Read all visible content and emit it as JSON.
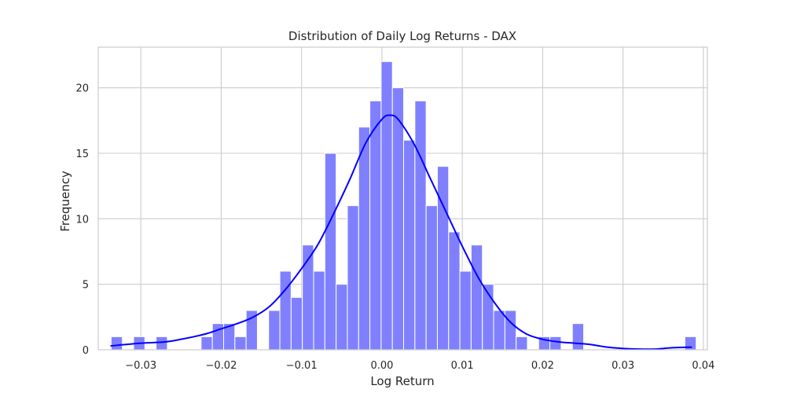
{
  "chart_data": {
    "type": "bar",
    "title": "Distribution of Daily Log Returns - DAX",
    "xlabel": "Log Return",
    "ylabel": "Frequency",
    "xlim": [
      -0.0353,
      0.0405
    ],
    "ylim": [
      0,
      23.1
    ],
    "x_ticks": [
      -0.03,
      -0.02,
      -0.01,
      0.0,
      0.01,
      0.02,
      0.03,
      0.04
    ],
    "x_tick_labels": [
      "−0.03",
      "−0.02",
      "−0.01",
      "0.00",
      "0.01",
      "0.02",
      "0.03",
      "0.04"
    ],
    "y_ticks": [
      0,
      5,
      10,
      15,
      20
    ],
    "y_tick_labels": [
      "0",
      "5",
      "10",
      "15",
      "20"
    ],
    "grid": true,
    "bar_color": "#8080ff",
    "bar_edge_color": "#ffffff",
    "kde_color": "#0000ff",
    "axis_edge_color": "#cccccc",
    "bins": [
      {
        "x0": -0.0337,
        "x1": -0.0323,
        "count": 1
      },
      {
        "x0": -0.0323,
        "x1": -0.0309,
        "count": 0
      },
      {
        "x0": -0.0309,
        "x1": -0.0295,
        "count": 1
      },
      {
        "x0": -0.0295,
        "x1": -0.0281,
        "count": 0
      },
      {
        "x0": -0.0281,
        "x1": -0.0267,
        "count": 1
      },
      {
        "x0": -0.0267,
        "x1": -0.0253,
        "count": 0
      },
      {
        "x0": -0.0253,
        "x1": -0.0239,
        "count": 0
      },
      {
        "x0": -0.0239,
        "x1": -0.0225,
        "count": 0
      },
      {
        "x0": -0.0225,
        "x1": -0.0211,
        "count": 1
      },
      {
        "x0": -0.0211,
        "x1": -0.0197,
        "count": 2
      },
      {
        "x0": -0.0197,
        "x1": -0.0183,
        "count": 2
      },
      {
        "x0": -0.0183,
        "x1": -0.0169,
        "count": 1
      },
      {
        "x0": -0.0169,
        "x1": -0.0155,
        "count": 3
      },
      {
        "x0": -0.0155,
        "x1": -0.0141,
        "count": 0
      },
      {
        "x0": -0.0141,
        "x1": -0.0127,
        "count": 3
      },
      {
        "x0": -0.0127,
        "x1": -0.0113,
        "count": 6
      },
      {
        "x0": -0.0113,
        "x1": -0.0099,
        "count": 4
      },
      {
        "x0": -0.0099,
        "x1": -0.0085,
        "count": 8
      },
      {
        "x0": -0.0085,
        "x1": -0.0071,
        "count": 6
      },
      {
        "x0": -0.0071,
        "x1": -0.0057,
        "count": 15
      },
      {
        "x0": -0.0057,
        "x1": -0.0043,
        "count": 5
      },
      {
        "x0": -0.0043,
        "x1": -0.0029,
        "count": 11
      },
      {
        "x0": -0.0029,
        "x1": -0.0015,
        "count": 17
      },
      {
        "x0": -0.0015,
        "x1": -0.0001,
        "count": 19
      },
      {
        "x0": -0.0001,
        "x1": 0.0013,
        "count": 22
      },
      {
        "x0": 0.0013,
        "x1": 0.0027,
        "count": 20
      },
      {
        "x0": 0.0027,
        "x1": 0.0041,
        "count": 16
      },
      {
        "x0": 0.0041,
        "x1": 0.0055,
        "count": 19
      },
      {
        "x0": 0.0055,
        "x1": 0.0069,
        "count": 11
      },
      {
        "x0": 0.0069,
        "x1": 0.0083,
        "count": 14
      },
      {
        "x0": 0.0083,
        "x1": 0.0097,
        "count": 9
      },
      {
        "x0": 0.0097,
        "x1": 0.0111,
        "count": 6
      },
      {
        "x0": 0.0111,
        "x1": 0.0125,
        "count": 8
      },
      {
        "x0": 0.0125,
        "x1": 0.0139,
        "count": 5
      },
      {
        "x0": 0.0139,
        "x1": 0.0153,
        "count": 3
      },
      {
        "x0": 0.0153,
        "x1": 0.0167,
        "count": 3
      },
      {
        "x0": 0.0167,
        "x1": 0.0181,
        "count": 1
      },
      {
        "x0": 0.0181,
        "x1": 0.0195,
        "count": 0
      },
      {
        "x0": 0.0195,
        "x1": 0.0209,
        "count": 1
      },
      {
        "x0": 0.0209,
        "x1": 0.0223,
        "count": 1
      },
      {
        "x0": 0.0223,
        "x1": 0.0237,
        "count": 0
      },
      {
        "x0": 0.0237,
        "x1": 0.0251,
        "count": 2
      },
      {
        "x0": 0.0251,
        "x1": 0.0265,
        "count": 0
      },
      {
        "x0": 0.0265,
        "x1": 0.0279,
        "count": 0
      },
      {
        "x0": 0.0279,
        "x1": 0.0293,
        "count": 0
      },
      {
        "x0": 0.0293,
        "x1": 0.0307,
        "count": 0
      },
      {
        "x0": 0.0307,
        "x1": 0.0321,
        "count": 0
      },
      {
        "x0": 0.0321,
        "x1": 0.0335,
        "count": 0
      },
      {
        "x0": 0.0335,
        "x1": 0.0349,
        "count": 0
      },
      {
        "x0": 0.0349,
        "x1": 0.0363,
        "count": 0
      },
      {
        "x0": 0.0363,
        "x1": 0.0377,
        "count": 0
      },
      {
        "x0": 0.0377,
        "x1": 0.0391,
        "count": 1
      }
    ],
    "kde": {
      "x": [
        -0.0337,
        -0.03,
        -0.027,
        -0.025,
        -0.022,
        -0.02,
        -0.018,
        -0.016,
        -0.014,
        -0.012,
        -0.01,
        -0.008,
        -0.006,
        -0.004,
        -0.002,
        0.0,
        0.001,
        0.002,
        0.004,
        0.006,
        0.008,
        0.01,
        0.012,
        0.014,
        0.016,
        0.018,
        0.02,
        0.022,
        0.024,
        0.026,
        0.028,
        0.03,
        0.032,
        0.034,
        0.036,
        0.0385
      ],
      "y": [
        0.3,
        0.5,
        0.6,
        0.8,
        1.2,
        1.6,
        2.0,
        2.5,
        3.3,
        4.6,
        6.2,
        8.0,
        10.4,
        13.0,
        15.8,
        17.6,
        17.9,
        17.6,
        15.7,
        13.1,
        10.5,
        7.9,
        5.5,
        3.6,
        2.1,
        1.2,
        0.8,
        0.6,
        0.5,
        0.4,
        0.2,
        0.1,
        0.05,
        0.05,
        0.15,
        0.2
      ]
    }
  }
}
